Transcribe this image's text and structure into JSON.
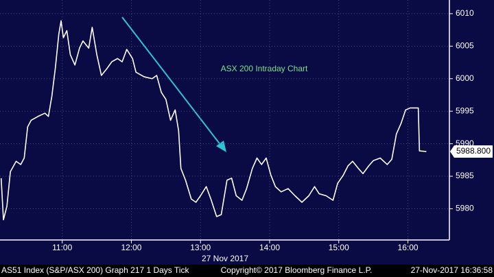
{
  "chart_data": {
    "type": "line",
    "annotation": "ASX 200 Intraday Chart",
    "x_axis_label": "27 Nov 2017",
    "last_price_label": "5988.800",
    "x": [
      "10:07",
      "10:09",
      "10:12",
      "10:15",
      "10:20",
      "10:24",
      "10:27",
      "10:30",
      "10:33",
      "10:39",
      "10:45",
      "10:48",
      "10:51",
      "10:54",
      "10:57",
      "10:59",
      "11:01",
      "11:04",
      "11:07",
      "11:11",
      "11:15",
      "11:18",
      "11:23",
      "11:26",
      "11:30",
      "11:34",
      "11:39",
      "11:43",
      "11:48",
      "11:52",
      "11:56",
      "12:01",
      "12:04",
      "12:11",
      "12:18",
      "12:22",
      "12:26",
      "12:30",
      "12:34",
      "12:38",
      "12:41",
      "12:43",
      "12:47",
      "12:52",
      "12:56",
      "13:00",
      "13:05",
      "13:09",
      "13:14",
      "13:18",
      "13:23",
      "13:27",
      "13:31",
      "13:36",
      "13:40",
      "13:45",
      "13:49",
      "13:53",
      "13:57",
      "14:01",
      "14:05",
      "14:10",
      "14:16",
      "14:22",
      "14:28",
      "14:34",
      "14:39",
      "14:43",
      "14:49",
      "14:55",
      "14:59",
      "15:04",
      "15:08",
      "15:12",
      "15:17",
      "15:21",
      "15:26",
      "15:30",
      "15:36",
      "15:42",
      "15:46",
      "15:50",
      "15:54",
      "15:58",
      "16:02",
      "16:09",
      "16:10",
      "16:16"
    ],
    "series": [
      {
        "name": "AS51 Index",
        "color": "#ffffff",
        "values": [
          5984.7,
          5978.3,
          5980.4,
          5985.7,
          5987.3,
          5986.8,
          5987.8,
          5992.6,
          5993.6,
          5994.2,
          5994.7,
          5994.2,
          5997.3,
          6001.6,
          6006.8,
          6008.9,
          6006.3,
          6007.4,
          6003.7,
          6002.1,
          6004.7,
          6005.8,
          6004.7,
          6007.9,
          6003.7,
          6000.5,
          6001.6,
          6002.6,
          6003.1,
          6002.6,
          6004.5,
          6003.1,
          6001.0,
          6000.3,
          6000.0,
          6000.5,
          5997.9,
          5996.8,
          5993.6,
          5995.2,
          5992.0,
          5986.2,
          5984.4,
          5981.5,
          5981.0,
          5982.0,
          5983.4,
          5981.5,
          5978.8,
          5979.1,
          5984.4,
          5984.7,
          5982.0,
          5981.3,
          5983.1,
          5986.2,
          5987.8,
          5986.8,
          5987.8,
          5985.2,
          5983.4,
          5982.6,
          5983.1,
          5982.0,
          5981.0,
          5982.0,
          5983.4,
          5982.3,
          5982.0,
          5981.3,
          5983.9,
          5985.2,
          5986.6,
          5987.3,
          5986.2,
          5985.4,
          5986.6,
          5987.4,
          5987.8,
          5986.8,
          5987.6,
          5991.5,
          5993.1,
          5995.2,
          5995.5,
          5995.5,
          5988.9,
          5988.8
        ]
      }
    ],
    "xlim": [
      "10:06",
      "16:36"
    ],
    "xticks": [
      "11:00",
      "12:00",
      "13:00",
      "14:00",
      "15:00",
      "16:00"
    ],
    "ylim": [
      5975.2,
      6012.1
    ],
    "yticks": [
      5980,
      5985,
      5990,
      5995,
      6000,
      6005,
      6010
    ],
    "grid": true
  },
  "footer": {
    "left": "AS51 Index (S&P/ASX 200) Graph 217 1 Days  Tick",
    "center": "Copyright© 2017 Bloomberg Finance L.P.",
    "right": "27-Nov-2017 16:36:58"
  }
}
